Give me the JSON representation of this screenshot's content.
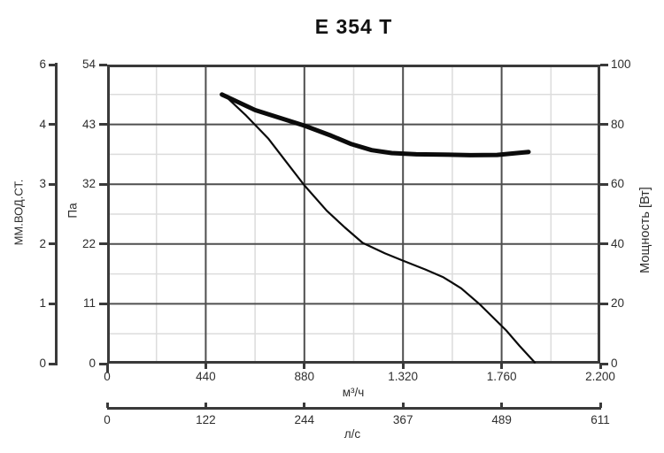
{
  "title": "E 354 T",
  "chart_data": {
    "type": "line",
    "title": "E 354 T",
    "background": "#ffffff",
    "colors": {
      "border": "#3a3a3a",
      "major_grid": "#4f4f4f",
      "minor_grid": "#dcdcdc",
      "curve": "#0b0b0b",
      "text": "#2e2e2e"
    },
    "grid": {
      "x_minor_step": 220,
      "y_major_divisions": 5,
      "y_minor_per_major": 2
    },
    "x_axis_primary": {
      "label": "м³/ч",
      "range": [
        0,
        2200
      ],
      "tick_values": [
        0,
        440,
        880,
        1320,
        1760,
        2200
      ],
      "tick_labels": [
        "0",
        "440",
        "880",
        "1.320",
        "1.760",
        "2.200"
      ]
    },
    "x_axis_secondary": {
      "label": "л/с",
      "tick_labels": [
        "0",
        "122",
        "244",
        "367",
        "489",
        "611"
      ]
    },
    "y_axis_pressure_pa": {
      "label": "Па",
      "range": [
        0,
        54
      ],
      "tick_labels_top_to_bottom": [
        "54",
        "43",
        "32",
        "22",
        "11",
        "0"
      ]
    },
    "y_axis_pressure_mm": {
      "label": "ММ.ВОД.СТ.",
      "tick_labels_top_to_bottom": [
        "6",
        "4",
        "3",
        "2",
        "1",
        "0"
      ]
    },
    "y_axis_power": {
      "label": "Мощность [Вт]",
      "range": [
        0,
        100
      ],
      "tick_labels_top_to_bottom": [
        "100",
        "80",
        "60",
        "40",
        "20",
        "0"
      ]
    },
    "series": [
      {
        "name": "pressure_curve",
        "y_axis": "pa",
        "units": [
          "м³/ч",
          "Па"
        ],
        "points": [
          [
            520,
            48.6
          ],
          [
            620,
            44.8
          ],
          [
            720,
            40.6
          ],
          [
            800,
            36.4
          ],
          [
            880,
            32.2
          ],
          [
            980,
            27.6
          ],
          [
            1060,
            24.6
          ],
          [
            1140,
            21.8
          ],
          [
            1240,
            19.9
          ],
          [
            1320,
            18.6
          ],
          [
            1420,
            17.0
          ],
          [
            1500,
            15.6
          ],
          [
            1580,
            13.6
          ],
          [
            1660,
            10.8
          ],
          [
            1720,
            8.4
          ],
          [
            1780,
            6.0
          ],
          [
            1840,
            3.2
          ],
          [
            1908,
            0.2
          ]
        ]
      },
      {
        "name": "power_curve",
        "y_axis": "w",
        "units": [
          "м³/ч",
          "Вт"
        ],
        "points": [
          [
            512,
            90.0
          ],
          [
            660,
            84.8
          ],
          [
            880,
            79.6
          ],
          [
            1000,
            76.2
          ],
          [
            1090,
            73.4
          ],
          [
            1180,
            71.4
          ],
          [
            1270,
            70.4
          ],
          [
            1380,
            70.0
          ],
          [
            1500,
            69.9
          ],
          [
            1620,
            69.7
          ],
          [
            1740,
            69.8
          ],
          [
            1880,
            70.8
          ]
        ]
      }
    ]
  }
}
